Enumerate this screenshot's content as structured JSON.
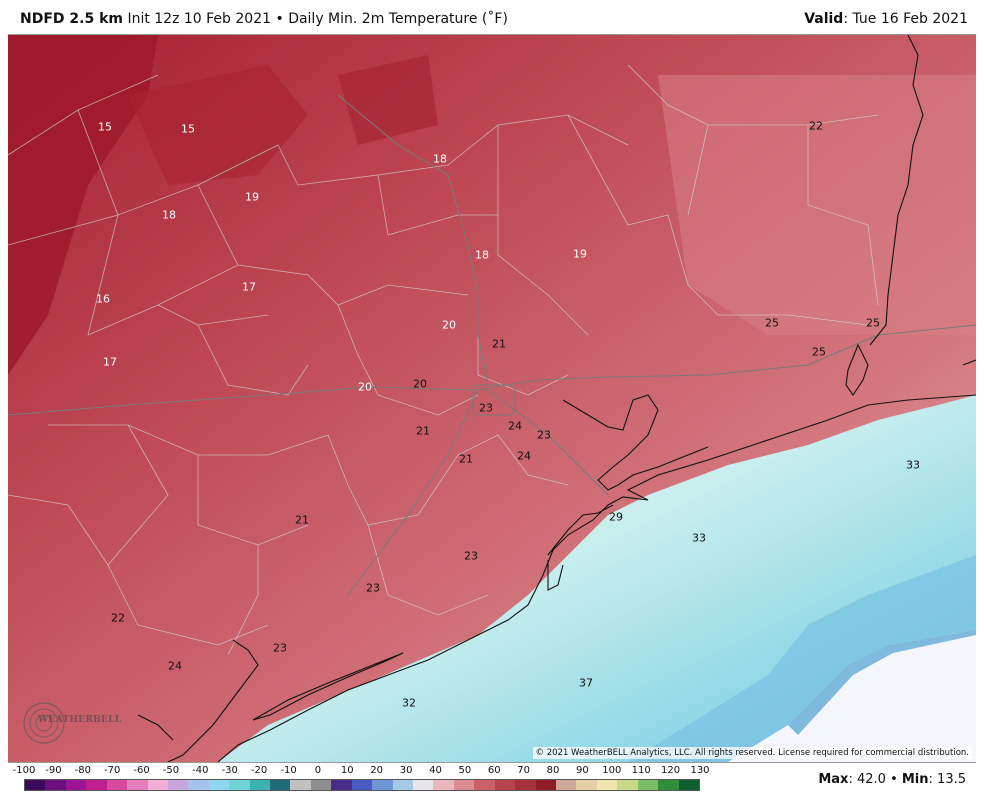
{
  "header": {
    "model": "NDFD 2.5 km",
    "init": "Init 12z 10 Feb 2021",
    "bullet": "•",
    "field": "Daily Min. 2m Temperature (˚F)",
    "valid_label": "Valid",
    "valid_date": ": Tue 16 Feb 2021"
  },
  "copyright": "© 2021 WeatherBELL Analytics, LLC. All rights reserved. License required for commercial distribution.",
  "watermark": "WEATHERBELL",
  "map_labels": [
    {
      "text": "15",
      "tone": "light"
    },
    {
      "text": "15",
      "tone": "light"
    },
    {
      "text": "18",
      "tone": "light"
    },
    {
      "text": "19",
      "tone": "light"
    },
    {
      "text": "18",
      "tone": "light"
    },
    {
      "text": "22",
      "tone": "dark"
    },
    {
      "text": "18",
      "tone": "light"
    },
    {
      "text": "19",
      "tone": "light"
    },
    {
      "text": "17",
      "tone": "light"
    },
    {
      "text": "16",
      "tone": "light"
    },
    {
      "text": "20",
      "tone": "light"
    },
    {
      "text": "21",
      "tone": "dark"
    },
    {
      "text": "25",
      "tone": "dark"
    },
    {
      "text": "25",
      "tone": "dark"
    },
    {
      "text": "25",
      "tone": "dark"
    },
    {
      "text": "17",
      "tone": "light"
    },
    {
      "text": "20",
      "tone": "light"
    },
    {
      "text": "20",
      "tone": "dark"
    },
    {
      "text": "23",
      "tone": "dark"
    },
    {
      "text": "24",
      "tone": "dark"
    },
    {
      "text": "23",
      "tone": "dark"
    },
    {
      "text": "21",
      "tone": "dark"
    },
    {
      "text": "21",
      "tone": "dark"
    },
    {
      "text": "24",
      "tone": "dark"
    },
    {
      "text": "33",
      "tone": "dark"
    },
    {
      "text": "21",
      "tone": "dark"
    },
    {
      "text": "29",
      "tone": "dark"
    },
    {
      "text": "33",
      "tone": "dark"
    },
    {
      "text": "23",
      "tone": "dark"
    },
    {
      "text": "23",
      "tone": "dark"
    },
    {
      "text": "22",
      "tone": "dark"
    },
    {
      "text": "23",
      "tone": "dark"
    },
    {
      "text": "24",
      "tone": "dark"
    },
    {
      "text": "37",
      "tone": "dark"
    },
    {
      "text": "32",
      "tone": "dark"
    }
  ],
  "colorbar": {
    "ticks": [
      "-100",
      "-90",
      "-80",
      "-70",
      "-60",
      "-50",
      "-40",
      "-30",
      "-20",
      "-10",
      "0",
      "10",
      "20",
      "30",
      "40",
      "50",
      "60",
      "70",
      "80",
      "90",
      "100",
      "110",
      "120",
      "130"
    ],
    "colors": [
      "#3b0a5a",
      "#6a0f7f",
      "#9c1596",
      "#c0208e",
      "#d94a9f",
      "#e77fbe",
      "#f1aed6",
      "#c9a5dd",
      "#a8c2ee",
      "#8fd6ef",
      "#6fd3d8",
      "#3cb3b0",
      "#1f6d78",
      "#c1c1c1",
      "#8e8e8e",
      "#4a2a8a",
      "#4b5cc4",
      "#6f96d6",
      "#a6c9e6",
      "#e8e6ea",
      "#e9b8bd",
      "#dc8d93",
      "#cc6069",
      "#b8434e",
      "#a8303c",
      "#8f1b28",
      "#d0a89a",
      "#e6cfa6",
      "#f0e6b0",
      "#c8d98c",
      "#7dbf66",
      "#2f8f3f",
      "#0f6030"
    ]
  },
  "stats": {
    "max_label": "Max",
    "max_value": ": 42.0",
    "bullet": "•",
    "min_label": "Min",
    "min_value": ": 13.5"
  }
}
